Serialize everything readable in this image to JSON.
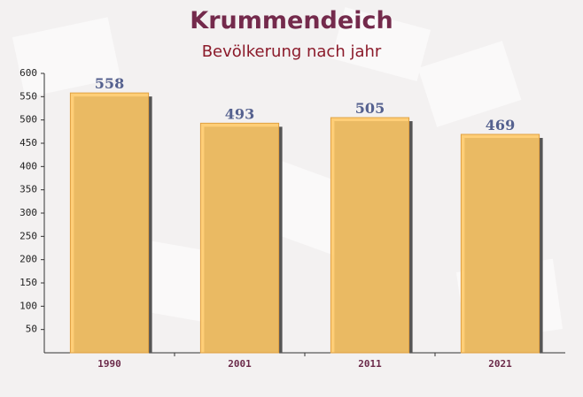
{
  "chart_data": {
    "type": "bar",
    "title": "Krummendeich",
    "subtitle": "Bevölkerung nach jahr",
    "categories": [
      "1990",
      "2001",
      "2011",
      "2021"
    ],
    "values": [
      558,
      493,
      505,
      469
    ],
    "color": "#ffc865",
    "ylim": [
      0,
      600
    ],
    "yticks": [
      50,
      100,
      150,
      200,
      250,
      300,
      350,
      400,
      450,
      500,
      550,
      600
    ],
    "grid": false
  }
}
